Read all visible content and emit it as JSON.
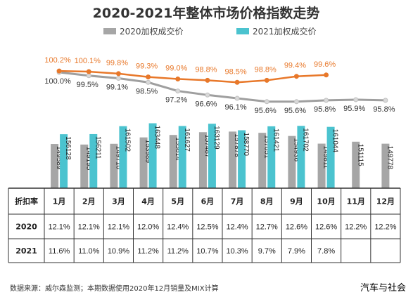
{
  "title": "2020-2021年整体市场价格指数走势",
  "legend": {
    "s2020": "2020加权成交价",
    "s2021": "2021加权成交价"
  },
  "colors": {
    "bar2020": "#a6a6a6",
    "bar2021": "#4bc3cf",
    "line2021": "#e8782a",
    "line2020": "#9f9f9f"
  },
  "chart_data": {
    "type": "bar",
    "categories": [
      "1月",
      "2月",
      "3月",
      "4月",
      "5月",
      "6月",
      "7月",
      "8月",
      "9月",
      "10月",
      "11月",
      "12月"
    ],
    "series": [
      {
        "name": "2020加权成交价",
        "values": [
          149589,
          149195,
          149710,
          153989,
          155614,
          157487,
          157878,
          157051,
          154936,
          149811,
          151115,
          149778
        ],
        "labels": [
          "149589",
          "149195",
          "149710",
          "153989",
          "155614",
          "157487",
          "157878",
          "157051",
          "154936",
          "149811",
          "151115",
          "149778"
        ]
      },
      {
        "name": "2021加权成交价",
        "values": [
          156128,
          156211,
          161502,
          163448,
          161627,
          163129,
          158770,
          161421,
          161702,
          161044,
          null,
          null
        ],
        "labels": [
          "156128",
          "156211",
          "161502",
          "163448",
          "161627",
          "163129",
          "158770",
          "161421",
          "161702",
          "161044",
          "",
          ""
        ]
      }
    ],
    "price_index": [
      {
        "year": "2020",
        "values": [
          100.0,
          99.5,
          99.1,
          98.5,
          97.2,
          96.6,
          96.1,
          95.6,
          95.6,
          95.8,
          95.9,
          95.8
        ],
        "labels": [
          "100.0%",
          "99.5%",
          "99.1%",
          "98.5%",
          "97.2%",
          "96.6%",
          "96.1%",
          "95.6%",
          "95.6%",
          "95.8%",
          "95.9%",
          "95.8%"
        ]
      },
      {
        "year": "2021",
        "values": [
          100.2,
          100.1,
          99.8,
          99.3,
          99.0,
          98.8,
          98.5,
          98.8,
          99.4,
          99.6,
          null,
          null
        ],
        "labels": [
          "100.2%",
          "100.1%",
          "99.8%",
          "99.3%",
          "99.0%",
          "98.8%",
          "98.5%",
          "98.8%",
          "99.4%",
          "99.6%",
          "",
          ""
        ]
      }
    ],
    "discount_table": {
      "header": "折扣率",
      "rows": [
        {
          "label": "2020",
          "values": [
            "12.1%",
            "12.1%",
            "12.1%",
            "12.0%",
            "12.4%",
            "12.5%",
            "12.4%",
            "12.7%",
            "12.6%",
            "12.6%",
            "12.2%",
            "12.2%"
          ]
        },
        {
          "label": "2021",
          "values": [
            "11.6%",
            "11.0%",
            "10.9%",
            "11.2%",
            "11.2%",
            "10.7%",
            "10.3%",
            "9.7%",
            "7.9%",
            "7.8%",
            "",
            ""
          ]
        }
      ]
    }
  },
  "footer": {
    "source": "数据来源：威尔森监测；本期数据使用2020年12月销量及MIX计算",
    "brand": "汽车与社会"
  }
}
